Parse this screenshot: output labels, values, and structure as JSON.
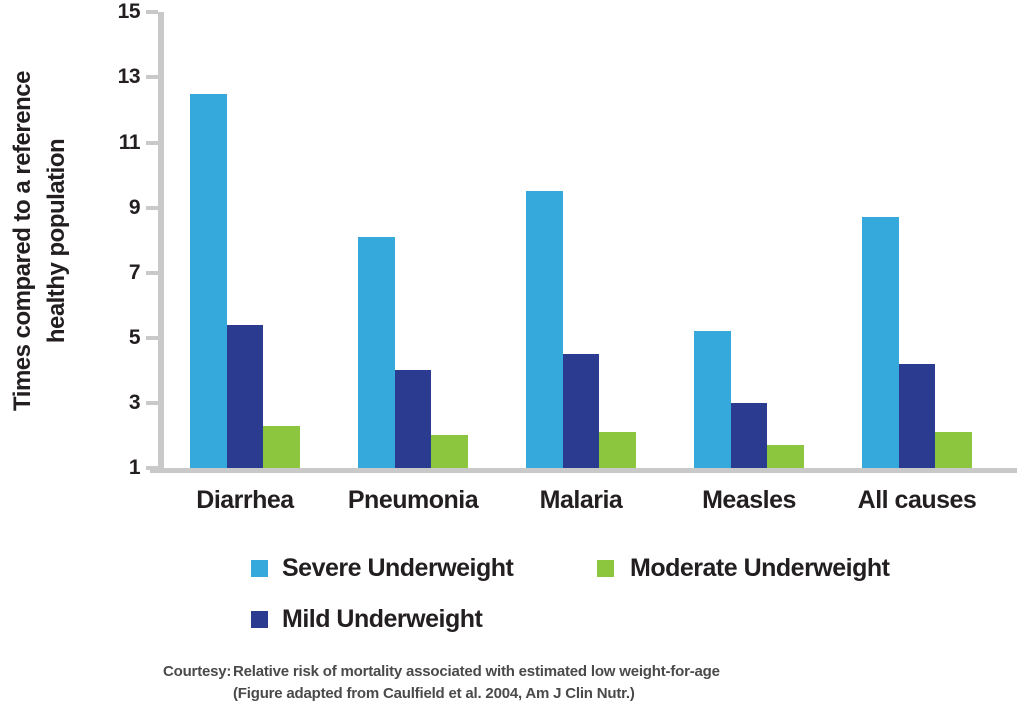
{
  "chart_data": {
    "type": "bar",
    "title": "",
    "ylabel": "Times compared to a reference healthy population",
    "ylabel_lines": [
      "Times compared to a reference",
      "healthy population"
    ],
    "categories": [
      "Diarrhea",
      "Pneumonia",
      "Malaria",
      "Measles",
      "All causes"
    ],
    "series": [
      {
        "name": "Severe Underweight",
        "color": "#35A9DC",
        "values": [
          12.5,
          8.1,
          9.5,
          5.2,
          8.7
        ]
      },
      {
        "name": "Mild Underweight",
        "color": "#2B3B90",
        "values": [
          5.4,
          4.0,
          4.5,
          3.0,
          4.2
        ]
      },
      {
        "name": "Moderate Underweight",
        "color": "#8CC63F",
        "values": [
          2.3,
          2.0,
          2.1,
          1.7,
          2.1
        ]
      }
    ],
    "y_ticks": [
      1,
      3,
      5,
      7,
      9,
      11,
      13,
      15
    ],
    "ylim": [
      1,
      15
    ],
    "grid": false,
    "legend_position": "bottom",
    "legend": [
      {
        "label": "Severe Underweight",
        "color": "#35A9DC"
      },
      {
        "label": "Moderate Underweight",
        "color": "#8CC63F"
      },
      {
        "label": "Mild Underweight",
        "color": "#2B3B90"
      }
    ],
    "axis_color": "#C9C9C9",
    "text_color": "#231F20"
  },
  "footer": {
    "courtesy_label": "Courtesy:",
    "line1": "Relative risk of mortality associated with estimated low weight-for-age",
    "line2": "(Figure adapted from Caulfield et al. 2004, Am J Clin Nutr.)"
  }
}
